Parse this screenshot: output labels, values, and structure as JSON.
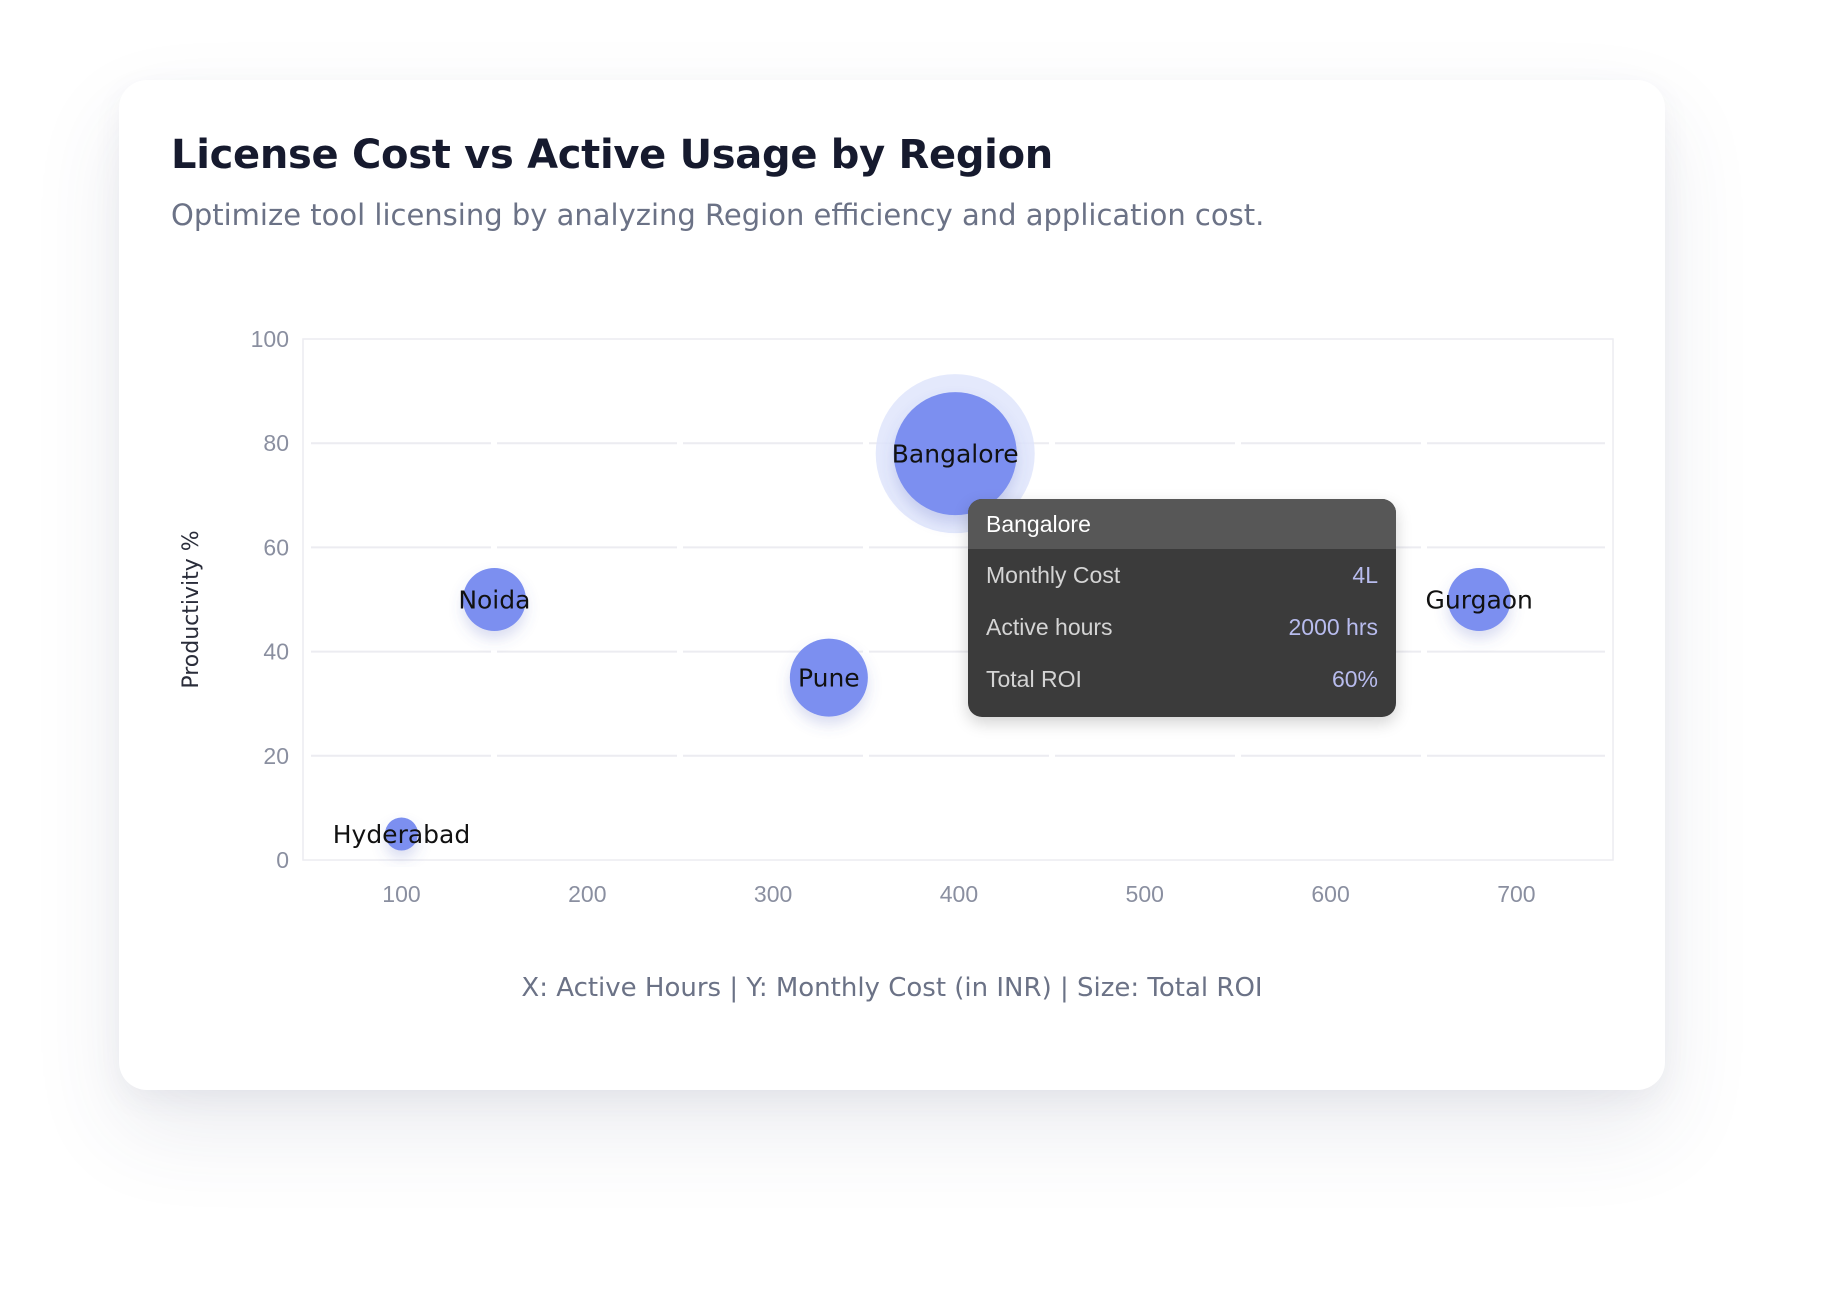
{
  "card": {
    "title": "License Cost vs Active Usage by Region",
    "subtitle": "Optimize tool licensing by analyzing Region efficiency and application cost.",
    "footnote": "X: Active Hours | Y: Monthly Cost (in INR) | Size: Total ROI"
  },
  "tooltip": {
    "title": "Bangalore",
    "rows": [
      {
        "label": "Monthly Cost",
        "value": "4L"
      },
      {
        "label": "Active hours",
        "value": "2000 hrs"
      },
      {
        "label": "Total ROI",
        "value": "60%"
      }
    ]
  },
  "colors": {
    "bubble": "#7b8ff0",
    "bubble_highlight_ring": "#dfe5fc",
    "grid": "#ececf1",
    "tick": "#8a8fa0",
    "tooltip_bg": "#3b3b3b",
    "tooltip_header": "#575757",
    "tooltip_value": "#b8bcee"
  },
  "chart_data": {
    "type": "bubble",
    "ylabel": "Productivity %",
    "xlim": [
      47,
      752
    ],
    "ylim": [
      0,
      100
    ],
    "x_ticks": [
      100,
      200,
      300,
      400,
      500,
      600,
      700
    ],
    "y_ticks": [
      0,
      20,
      40,
      60,
      80,
      100
    ],
    "grid": true,
    "highlighted": "Bangalore",
    "points": [
      {
        "label": "Hyderabad",
        "x": 100,
        "y": 5,
        "size": 1
      },
      {
        "label": "Noida",
        "x": 150,
        "y": 50,
        "size": 3
      },
      {
        "label": "Pune",
        "x": 330,
        "y": 35,
        "size": 4
      },
      {
        "label": "Bangalore",
        "x": 398,
        "y": 78,
        "size": 7
      },
      {
        "label": "Gurgaon",
        "x": 680,
        "y": 50,
        "size": 3
      }
    ]
  }
}
